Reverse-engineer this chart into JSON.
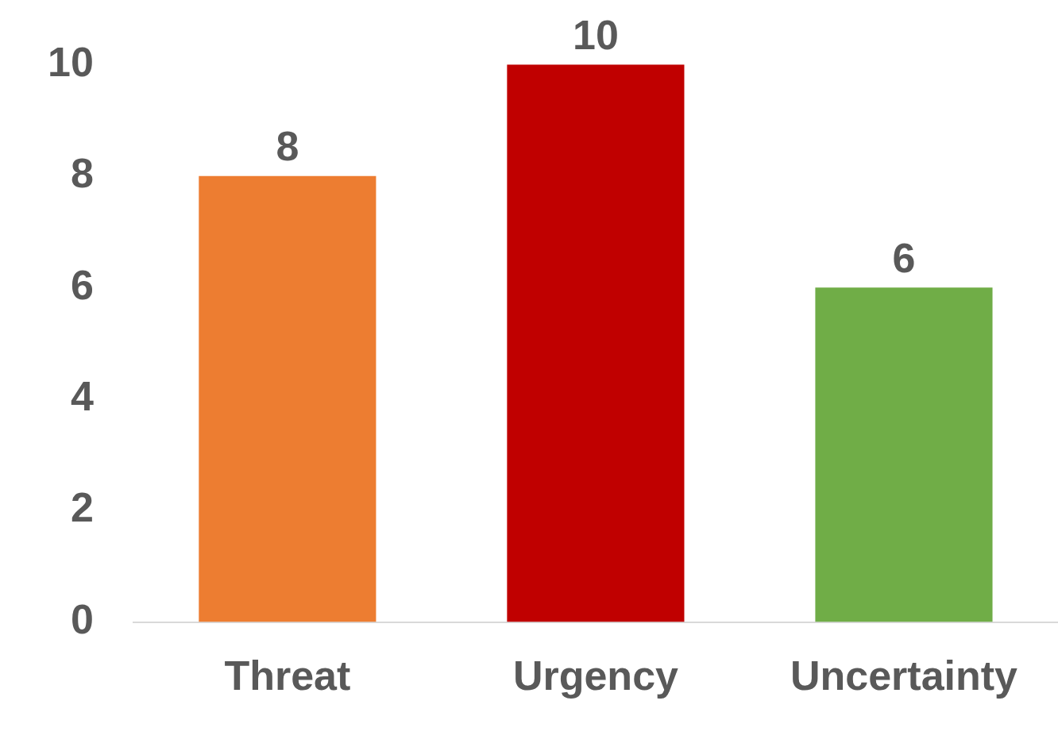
{
  "chart_data": {
    "type": "bar",
    "categories": [
      "Threat",
      "Urgency",
      "Uncertainty"
    ],
    "values": [
      8,
      10,
      6
    ],
    "colors": [
      "#ed7d31",
      "#c00000",
      "#70ad47"
    ],
    "ylim": [
      0,
      10
    ],
    "yticks": [
      0,
      2,
      4,
      6,
      8,
      10
    ],
    "grid": false,
    "legend": false,
    "data_labels": true
  }
}
